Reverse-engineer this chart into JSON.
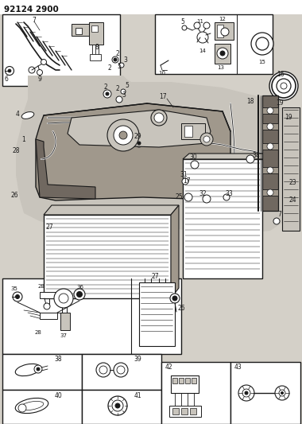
{
  "title": "92124 2900",
  "bg_color": "#d4d0c8",
  "line_color": "#1a1a1a",
  "fig_width": 3.8,
  "fig_height": 5.33,
  "dpi": 100,
  "white": "#ffffff",
  "gray_light": "#c8c4bc",
  "gray_mid": "#a0988c",
  "gray_dark": "#706860"
}
